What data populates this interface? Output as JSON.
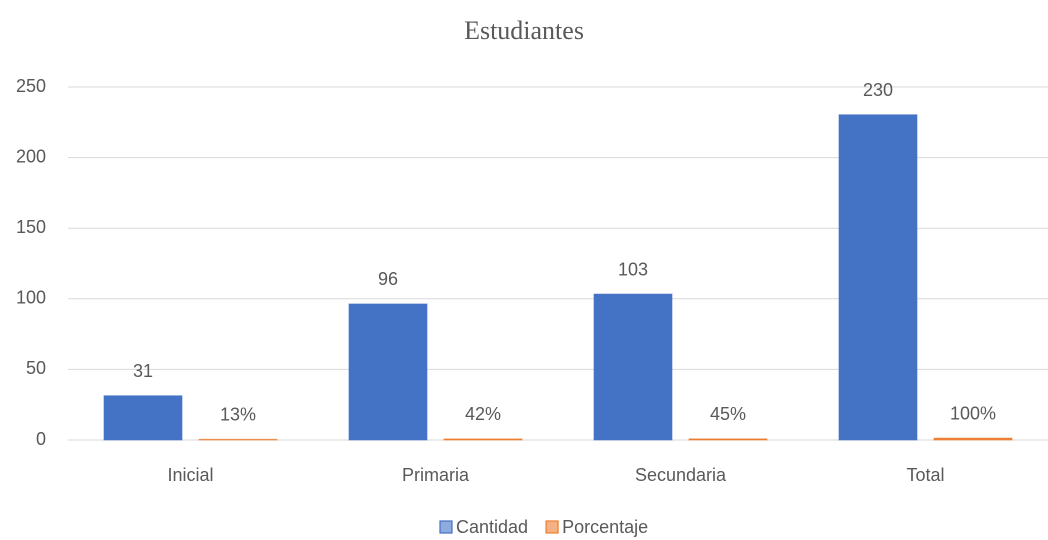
{
  "chart_data": {
    "type": "bar",
    "title": "Estudiantes",
    "categories": [
      "Inicial",
      "Primaria",
      "Secundaria",
      "Total"
    ],
    "series": [
      {
        "name": "Cantidad",
        "color": "#4472c4",
        "values": [
          31,
          96,
          103,
          230
        ]
      },
      {
        "name": "Porcentaje",
        "color": "#ed7d31",
        "values": [
          0.13,
          0.42,
          0.45,
          1
        ],
        "value_labels": [
          "13%",
          "42%",
          "45%",
          "100%"
        ]
      }
    ],
    "ylim": [
      0,
      250
    ],
    "yticks": [
      0,
      50,
      100,
      150,
      200,
      250
    ],
    "grid": true,
    "legend": "bottom"
  }
}
